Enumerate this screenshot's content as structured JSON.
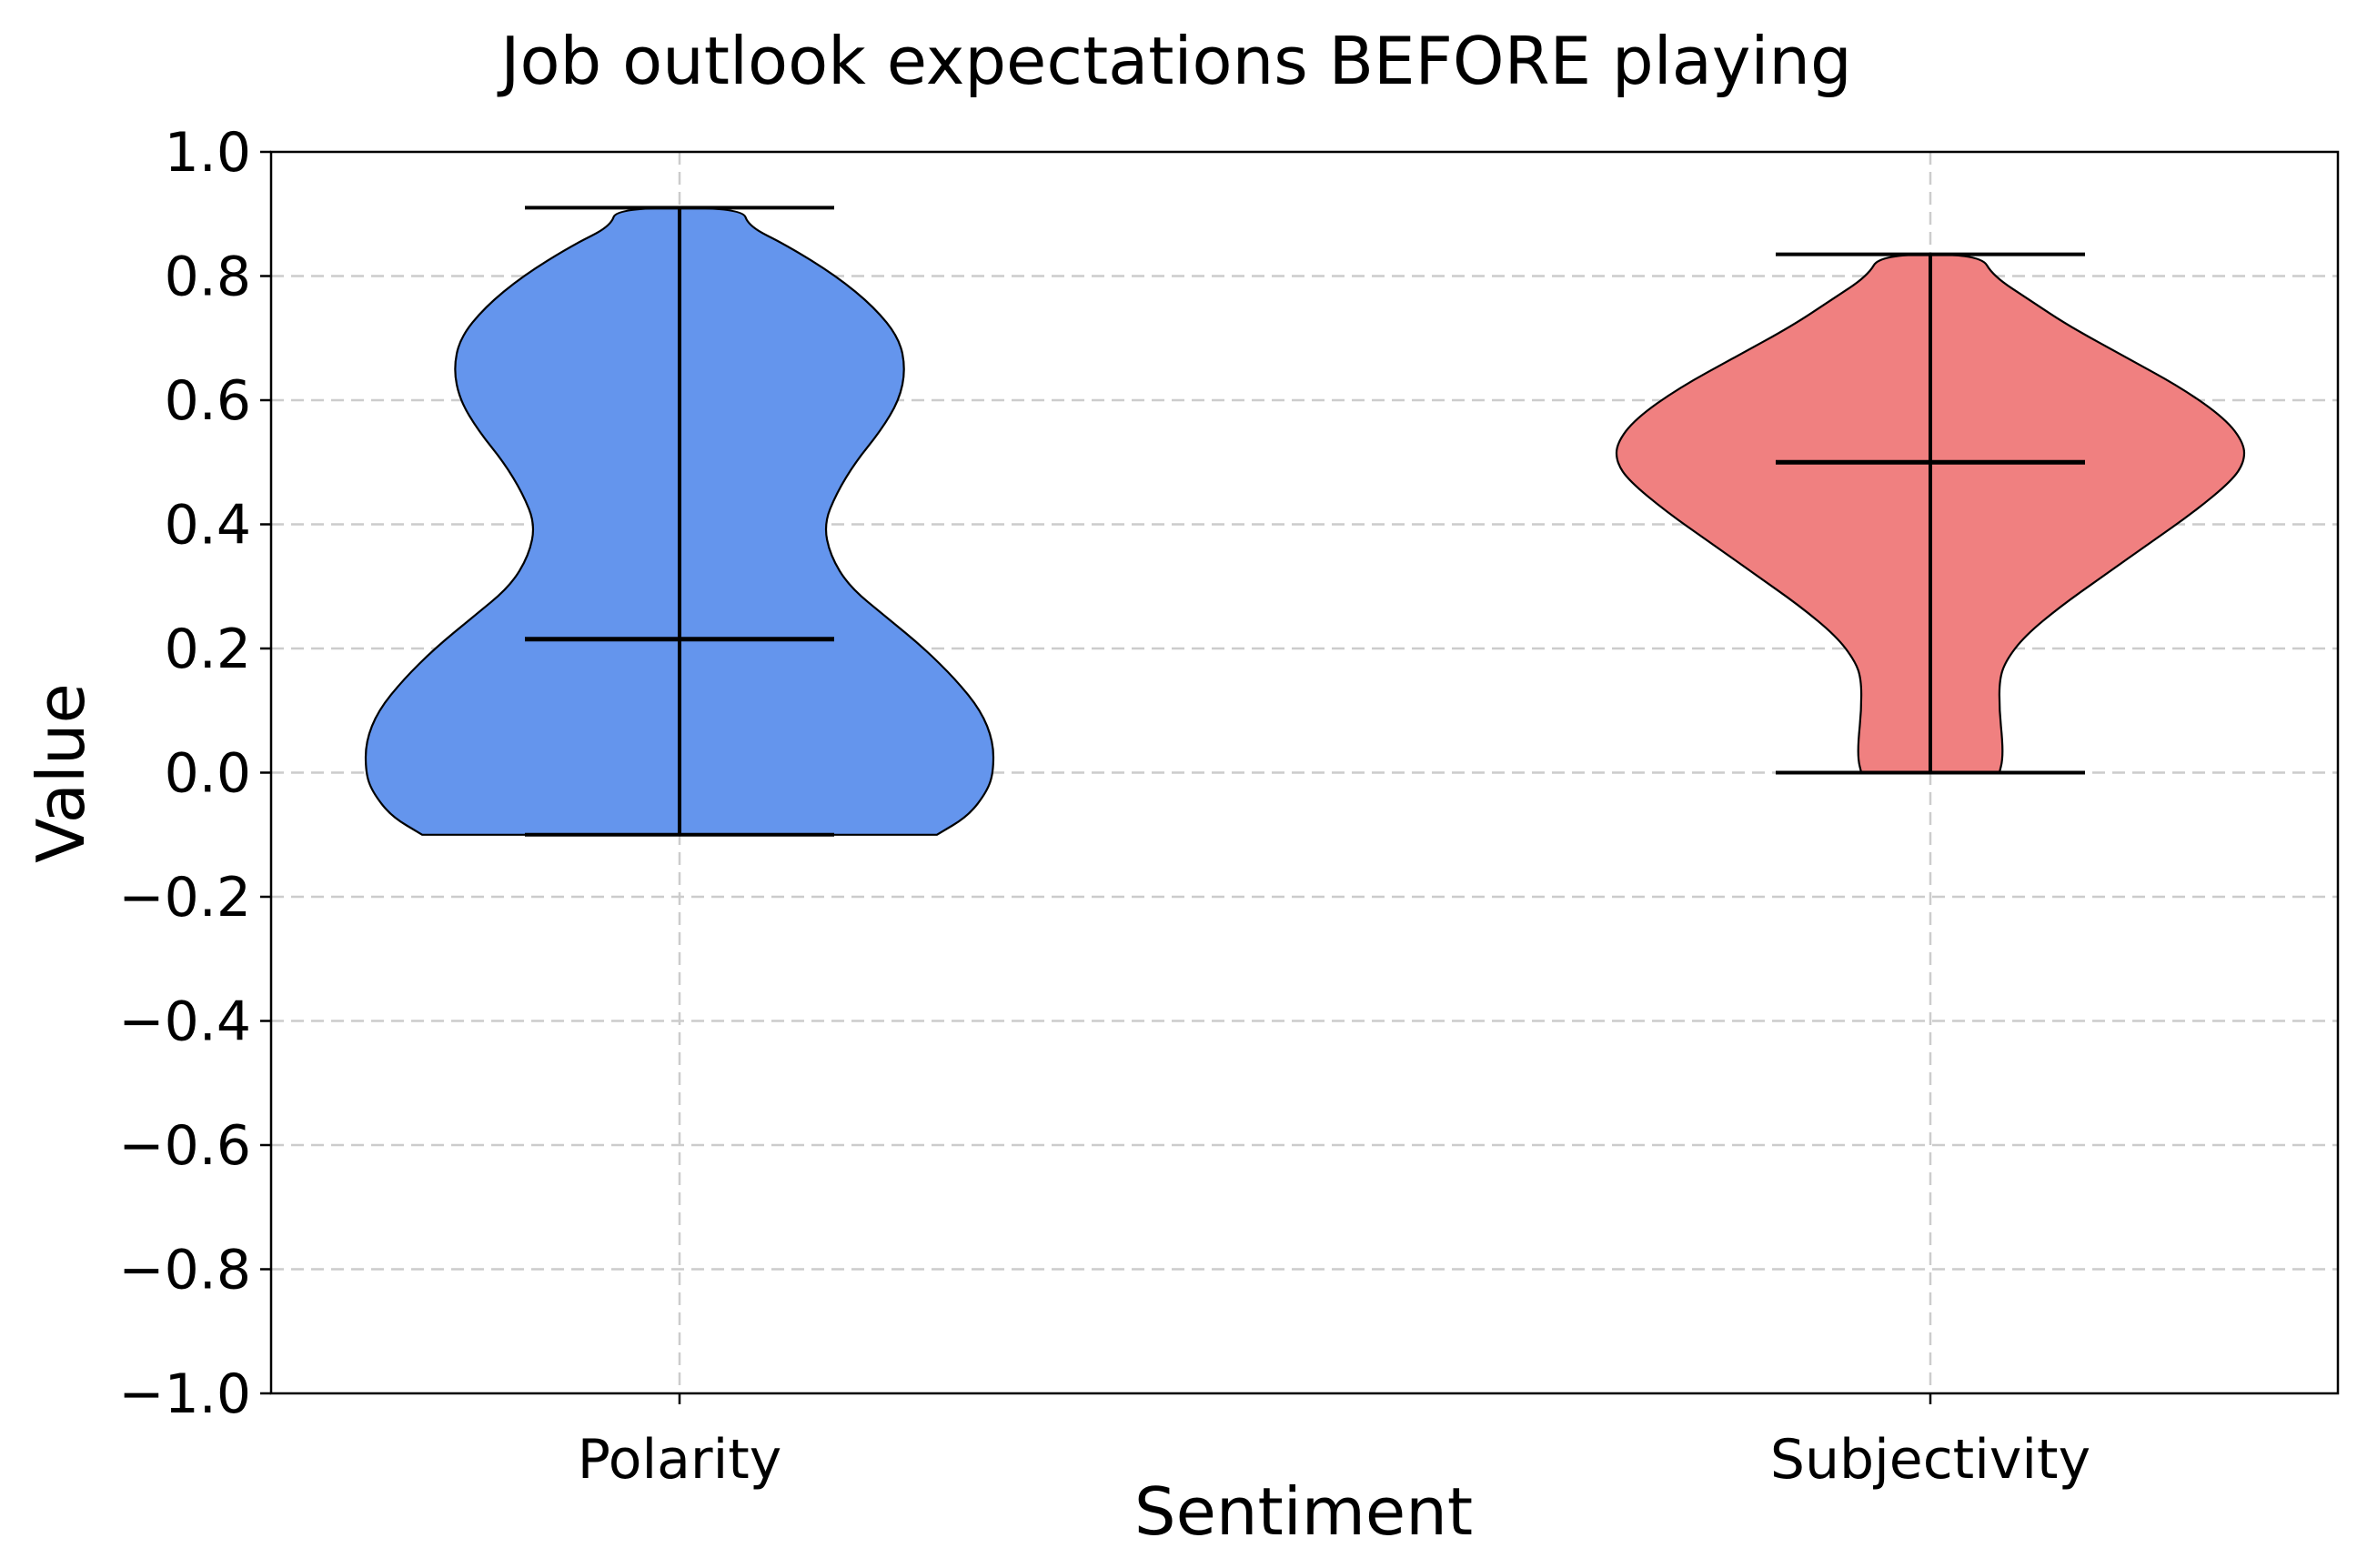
{
  "chart_data": {
    "type": "violin",
    "title": "Job outlook expectations BEFORE playing",
    "xlabel": "Sentiment",
    "ylabel": "Value",
    "ylim": [
      -1.0,
      1.0
    ],
    "yticks": [
      -1.0,
      -0.8,
      -0.6,
      -0.4,
      -0.2,
      0.0,
      0.2,
      0.4,
      0.6,
      0.8,
      1.0
    ],
    "ytick_labels": [
      "−1.0",
      "−0.8",
      "−0.6",
      "−0.4",
      "−0.2",
      "0.0",
      "0.2",
      "0.4",
      "0.6",
      "0.8",
      "1.0"
    ],
    "categories": [
      "Polarity",
      "Subjectivity"
    ],
    "grid": true,
    "series": [
      {
        "category": "Polarity",
        "color": "#6495ED",
        "min": -0.1,
        "max": 0.91,
        "median": 0.215,
        "density_profile": [
          [
            -0.1,
            0.41
          ],
          [
            -0.07,
            0.46
          ],
          [
            -0.03,
            0.49
          ],
          [
            0.0,
            0.5
          ],
          [
            0.05,
            0.5
          ],
          [
            0.1,
            0.48
          ],
          [
            0.15,
            0.44
          ],
          [
            0.2,
            0.39
          ],
          [
            0.25,
            0.33
          ],
          [
            0.3,
            0.27
          ],
          [
            0.35,
            0.24
          ],
          [
            0.4,
            0.23
          ],
          [
            0.45,
            0.25
          ],
          [
            0.5,
            0.28
          ],
          [
            0.55,
            0.32
          ],
          [
            0.6,
            0.35
          ],
          [
            0.65,
            0.36
          ],
          [
            0.7,
            0.35
          ],
          [
            0.75,
            0.31
          ],
          [
            0.8,
            0.25
          ],
          [
            0.85,
            0.17
          ],
          [
            0.88,
            0.11
          ],
          [
            0.91,
            0.1
          ]
        ]
      },
      {
        "category": "Subjectivity",
        "color": "#F08080",
        "min": 0.0,
        "max": 0.835,
        "median": 0.5,
        "density_profile": [
          [
            0.0,
            0.11
          ],
          [
            0.02,
            0.115
          ],
          [
            0.05,
            0.115
          ],
          [
            0.1,
            0.11
          ],
          [
            0.15,
            0.11
          ],
          [
            0.18,
            0.12
          ],
          [
            0.22,
            0.15
          ],
          [
            0.27,
            0.21
          ],
          [
            0.32,
            0.28
          ],
          [
            0.37,
            0.35
          ],
          [
            0.42,
            0.42
          ],
          [
            0.47,
            0.48
          ],
          [
            0.5,
            0.5
          ],
          [
            0.53,
            0.5
          ],
          [
            0.57,
            0.47
          ],
          [
            0.62,
            0.4
          ],
          [
            0.67,
            0.31
          ],
          [
            0.72,
            0.22
          ],
          [
            0.76,
            0.16
          ],
          [
            0.8,
            0.1
          ],
          [
            0.835,
            0.08
          ]
        ]
      }
    ]
  }
}
